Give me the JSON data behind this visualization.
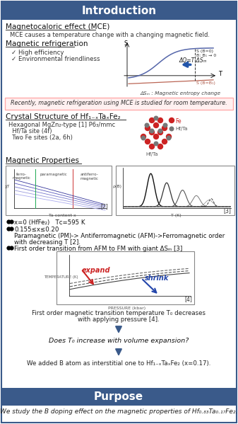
{
  "title": "Introduction",
  "purpose_title": "Purpose",
  "header_color": "#3A5A8A",
  "header_text_color": "#FFFFFF",
  "bg_color": "#FFFFFF",
  "border_color": "#3A5A8A",
  "highlight_bg": "#FFF0F0",
  "highlight_border": "#FFAAAA",
  "mce_title": "Magnetocaloric effect (MCE)",
  "mce_desc": "MCE causes a temperature change with a changing magnetic field.",
  "mag_ref_title": "Magnetic refrigeration",
  "benefit1": "✓ High efficiency",
  "benefit2": "✓ Environmental friendliness",
  "delta_sm": "ΔSₘ : Magnetic entropy change",
  "highlight_text": "Recently, magnetic refrigeration using MCE is studied for room temperature.",
  "crystal_title": "Crystal Structure of Hf₁₋ₓTaₓFe₂",
  "crystal_sub1": "Hexagonal MgZn₂-type [1] P6₃/mmc",
  "crystal_sub2": "  Hf/Ta site (4f)",
  "crystal_sub3": "  Two Fe sites (2a, 6h)",
  "mag_prop_title": "Magnetic Properties",
  "ref2": "[2]",
  "ref3": "[3]",
  "ref4": "[4]",
  "bullet1": "x=0 (HfFe₂)   Tᴄ=595 K",
  "bullet2": "0.155≤x≤0.20",
  "bullet2b": "Paramagnetic (PM)-> Antiferromagnetic (AFM)->Ferromagnetic order",
  "bullet2c": "with decreasing T [2].",
  "bullet3": "First order transition from AFM to FM with giant ΔSₘ [3]",
  "expand_text": "expand",
  "shrink_text": "shrink",
  "pressure_desc1": "First order magnetic transition temperature T₀ decreases",
  "pressure_desc2": "with applying pressure [4].",
  "question": "Does T₀ increase with volume expansion?",
  "answer": "We added B atom as interstitial one to Hf₁₋ₓTaₓFe₂ (x=0.17).",
  "purpose_text": "We study the B doping effect on the magnetic properties of Hf₀.₈₃Ta₀.₁₇Fe₂."
}
